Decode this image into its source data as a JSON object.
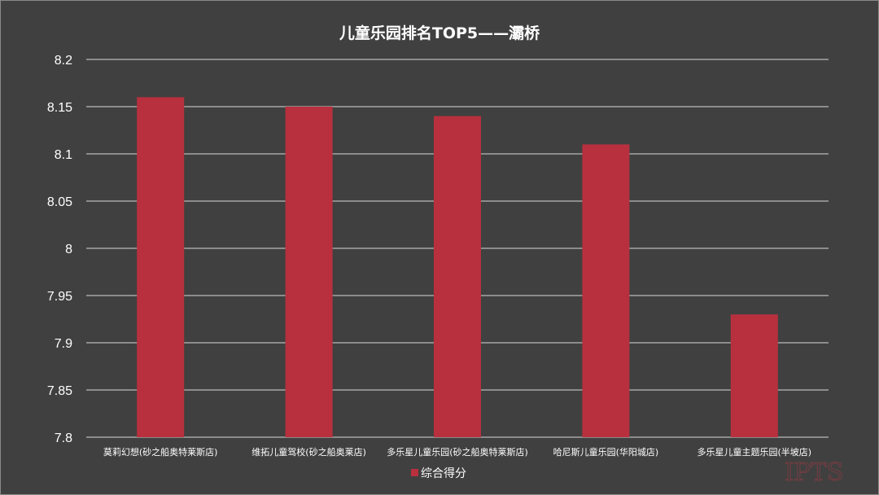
{
  "chart_data": {
    "type": "bar",
    "title": "儿童乐园排名TOP5——灞桥",
    "categories": [
      "莫莉幻想(砂之船奥特莱斯店)",
      "维拓儿童驾校(砂之船奥莱店)",
      "多乐星儿童乐园(砂之船奥特莱斯店)",
      "哈尼斯儿童乐园(华阳城店)",
      "多乐星儿童主题乐园(半坡店)"
    ],
    "series": [
      {
        "name": "综合得分",
        "values": [
          8.16,
          8.15,
          8.14,
          8.11,
          7.93
        ],
        "color": "#b8303e"
      }
    ],
    "ylim": [
      7.8,
      8.2
    ],
    "yticks": [
      "7.8",
      "7.85",
      "7.9",
      "7.95",
      "8",
      "8.05",
      "8.1",
      "8.15",
      "8.2"
    ],
    "grid": true,
    "legend_position": "bottom-center",
    "xlabel": "",
    "ylabel": ""
  },
  "watermark": "IPTS"
}
